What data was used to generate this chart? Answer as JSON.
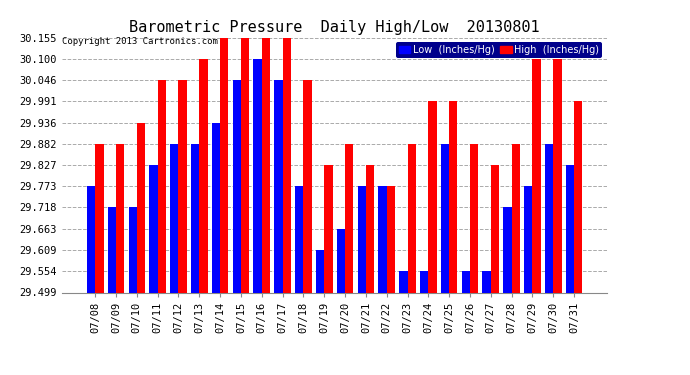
{
  "title": "Barometric Pressure  Daily High/Low  20130801",
  "copyright": "Copyright 2013 Cartronics.com",
  "legend_low": "Low  (Inches/Hg)",
  "legend_high": "High  (Inches/Hg)",
  "dates": [
    "07/08",
    "07/09",
    "07/10",
    "07/11",
    "07/12",
    "07/13",
    "07/14",
    "07/15",
    "07/16",
    "07/17",
    "07/18",
    "07/19",
    "07/20",
    "07/21",
    "07/22",
    "07/23",
    "07/24",
    "07/25",
    "07/26",
    "07/27",
    "07/28",
    "07/29",
    "07/30",
    "07/31"
  ],
  "low": [
    29.773,
    29.718,
    29.718,
    29.827,
    29.882,
    29.882,
    29.936,
    30.046,
    30.1,
    30.046,
    29.773,
    29.609,
    29.663,
    29.773,
    29.773,
    29.554,
    29.554,
    29.882,
    29.554,
    29.554,
    29.718,
    29.773,
    29.882,
    29.827
  ],
  "high": [
    29.882,
    29.882,
    29.936,
    30.046,
    30.046,
    30.1,
    30.155,
    30.155,
    30.155,
    30.155,
    30.046,
    29.827,
    29.882,
    29.827,
    29.773,
    29.882,
    29.991,
    29.991,
    29.882,
    29.827,
    29.882,
    30.1,
    30.1,
    29.991
  ],
  "ymin": 29.499,
  "ymax": 30.155,
  "yticks": [
    29.499,
    29.554,
    29.609,
    29.663,
    29.718,
    29.773,
    29.827,
    29.882,
    29.936,
    29.991,
    30.046,
    30.1,
    30.155
  ],
  "low_color": "#0000ff",
  "high_color": "#ff0000",
  "background_color": "#ffffff",
  "grid_color": "#aaaaaa",
  "title_fontsize": 11,
  "tick_fontsize": 7.5,
  "bar_width": 0.4
}
